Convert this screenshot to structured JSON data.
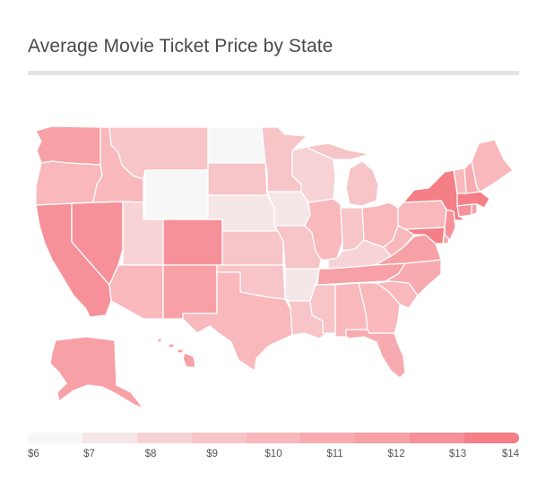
{
  "title": "Average Movie Ticket Price by State",
  "legend": {
    "labels": [
      "$6",
      "$7",
      "$8",
      "$9",
      "$10",
      "$11",
      "$12",
      "$13",
      "$14"
    ],
    "colors": [
      "#f7f7f7",
      "#f5e6e7",
      "#f8d3d5",
      "#f7c4c7",
      "#f8b8bc",
      "#f7abb0",
      "#f7a0a5",
      "#f6919a",
      "#f47f87"
    ]
  },
  "map": {
    "regions": [
      {
        "id": "WA",
        "tier": 6
      },
      {
        "id": "OR",
        "tier": 4
      },
      {
        "id": "CA",
        "tier": 7
      },
      {
        "id": "NV",
        "tier": 7
      },
      {
        "id": "ID",
        "tier": 4
      },
      {
        "id": "MT",
        "tier": 3
      },
      {
        "id": "WY",
        "tier": 0
      },
      {
        "id": "UT",
        "tier": 2
      },
      {
        "id": "AZ",
        "tier": 4
      },
      {
        "id": "CO",
        "tier": 7
      },
      {
        "id": "NM",
        "tier": 6
      },
      {
        "id": "ND",
        "tier": 0
      },
      {
        "id": "SD",
        "tier": 3
      },
      {
        "id": "NE",
        "tier": 1
      },
      {
        "id": "KS",
        "tier": 3
      },
      {
        "id": "OK",
        "tier": 3
      },
      {
        "id": "TX",
        "tier": 4
      },
      {
        "id": "MN",
        "tier": 3
      },
      {
        "id": "IA",
        "tier": 1
      },
      {
        "id": "MO",
        "tier": 3
      },
      {
        "id": "AR",
        "tier": 1
      },
      {
        "id": "LA",
        "tier": 3
      },
      {
        "id": "WI",
        "tier": 2
      },
      {
        "id": "IL",
        "tier": 4
      },
      {
        "id": "MI",
        "tier": 3
      },
      {
        "id": "IN",
        "tier": 3
      },
      {
        "id": "OH",
        "tier": 4
      },
      {
        "id": "KY",
        "tier": 2
      },
      {
        "id": "TN",
        "tier": 6
      },
      {
        "id": "MS",
        "tier": 3
      },
      {
        "id": "AL",
        "tier": 4
      },
      {
        "id": "GA",
        "tier": 4
      },
      {
        "id": "FL",
        "tier": 5
      },
      {
        "id": "SC",
        "tier": 4
      },
      {
        "id": "NC",
        "tier": 5
      },
      {
        "id": "VA",
        "tier": 6
      },
      {
        "id": "WV",
        "tier": 4
      },
      {
        "id": "PA",
        "tier": 4
      },
      {
        "id": "NY",
        "tier": 8
      },
      {
        "id": "VT",
        "tier": 4
      },
      {
        "id": "NH",
        "tier": 5
      },
      {
        "id": "ME",
        "tier": 4
      },
      {
        "id": "MA",
        "tier": 8
      },
      {
        "id": "CT",
        "tier": 7
      },
      {
        "id": "RI",
        "tier": 6
      },
      {
        "id": "NJ",
        "tier": 7
      },
      {
        "id": "DE",
        "tier": 5
      },
      {
        "id": "MD",
        "tier": 8
      },
      {
        "id": "AK",
        "tier": 6
      },
      {
        "id": "HI",
        "tier": 6
      }
    ]
  }
}
